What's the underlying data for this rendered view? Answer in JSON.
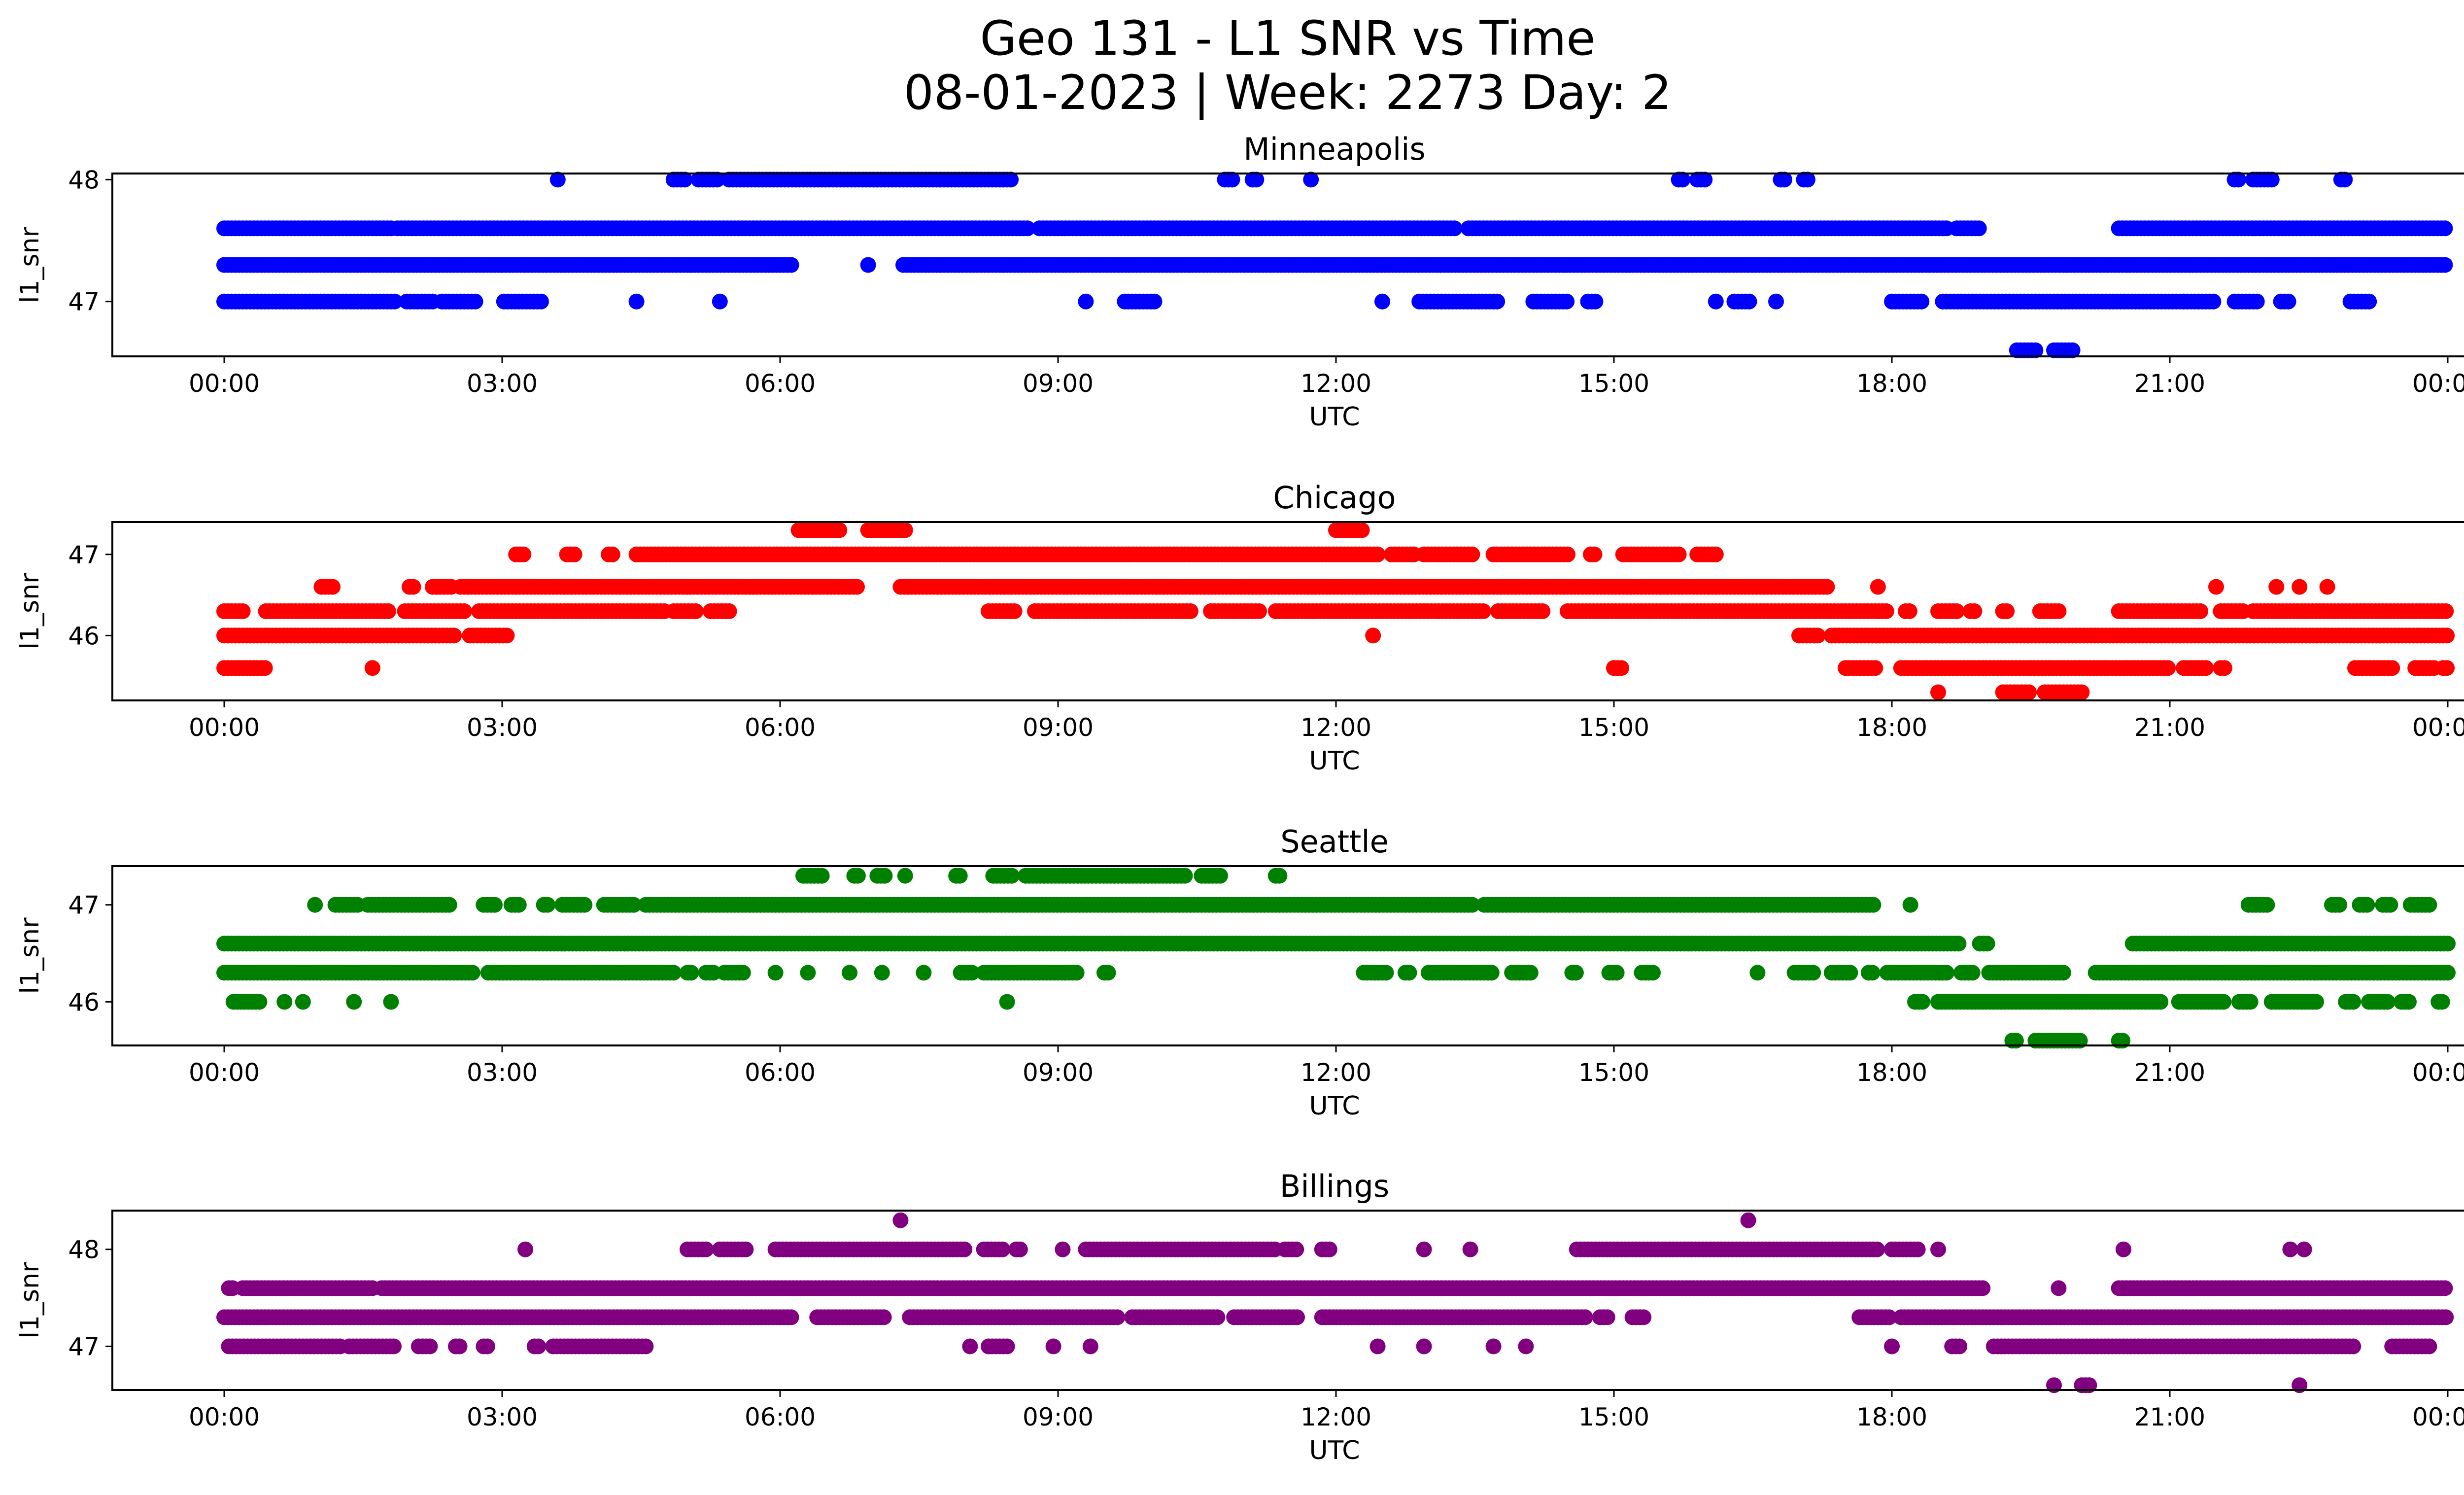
{
  "figure": {
    "title_line1": "Geo 131 - L1 SNR vs Time",
    "title_line2": "08-01-2023 | Week: 2273 Day: 2"
  },
  "chart_data": [
    {
      "type": "scatter",
      "title": "Minneapolis",
      "xlabel": "UTC",
      "ylabel": "l1_snr",
      "color": "#0000ff",
      "xlim": [
        "23:35",
        "24:25"
      ],
      "ylim": [
        46.55,
        48.05
      ],
      "x_ticks": [
        "00:00",
        "03:00",
        "06:00",
        "09:00",
        "12:00",
        "15:00",
        "18:00",
        "21:00",
        "00:00"
      ],
      "y_ticks": [
        47,
        48
      ],
      "bands": [
        {
          "y": 47.6,
          "ranges": [
            [
              0.0,
              1.8
            ],
            [
              1.87,
              8.7
            ],
            [
              8.8,
              13.3
            ],
            [
              13.43,
              18.6
            ],
            [
              18.7,
              18.97
            ],
            [
              20.45,
              24.0
            ]
          ]
        },
        {
          "y": 47.3,
          "ranges": [
            [
              0.0,
              6.15
            ],
            [
              7.33,
              24.0
            ]
          ]
        },
        {
          "y": 47.0,
          "ranges": [
            [
              0.0,
              1.85
            ],
            [
              1.97,
              2.25
            ],
            [
              2.35,
              2.72
            ],
            [
              3.02,
              3.45
            ],
            [
              9.3,
              9.3
            ],
            [
              9.72,
              10.05
            ],
            [
              12.5,
              12.5
            ],
            [
              12.9,
              13.75
            ],
            [
              14.13,
              14.5
            ],
            [
              14.72,
              14.8
            ],
            [
              16.1,
              16.1
            ],
            [
              16.3,
              16.48
            ],
            [
              16.75,
              16.75
            ],
            [
              18.0,
              18.35
            ],
            [
              18.55,
              21.5
            ],
            [
              21.7,
              21.95
            ],
            [
              22.2,
              22.3
            ],
            [
              22.95,
              23.15
            ]
          ]
        },
        {
          "y": 48.0,
          "ranges": [
            [
              4.85,
              5.0
            ],
            [
              5.12,
              5.35
            ],
            [
              5.45,
              8.5
            ],
            [
              10.8,
              10.9
            ],
            [
              11.1,
              11.15
            ],
            [
              11.73,
              11.73
            ],
            [
              15.7,
              15.75
            ],
            [
              15.9,
              16.0
            ],
            [
              16.8,
              16.85
            ],
            [
              17.05,
              17.1
            ],
            [
              21.7,
              21.75
            ],
            [
              21.9,
              22.1
            ],
            [
              22.85,
              22.9
            ]
          ]
        },
        {
          "y": 46.6,
          "ranges": [
            [
              19.35,
              19.55
            ],
            [
              19.75,
              19.95
            ]
          ]
        }
      ],
      "points": [
        [
          3.6,
          48.0
        ],
        [
          6.95,
          47.3
        ],
        [
          4.45,
          47.0
        ],
        [
          5.35,
          47.0
        ],
        [
          21.15,
          47.0
        ]
      ]
    },
    {
      "type": "scatter",
      "title": "Chicago",
      "xlabel": "UTC",
      "ylabel": "l1_snr",
      "color": "#ff0000",
      "xlim": [
        "23:35",
        "24:25"
      ],
      "ylim": [
        45.2,
        47.4
      ],
      "x_ticks": [
        "00:00",
        "03:00",
        "06:00",
        "09:00",
        "12:00",
        "15:00",
        "18:00",
        "21:00",
        "00:00"
      ],
      "y_ticks": [
        46,
        47
      ],
      "bands": [
        {
          "y": 47.0,
          "ranges": [
            [
              3.15,
              3.25
            ],
            [
              3.7,
              3.8
            ],
            [
              4.15,
              4.2
            ],
            [
              4.45,
              12.45
            ],
            [
              12.6,
              12.85
            ],
            [
              12.95,
              13.5
            ],
            [
              13.7,
              14.5
            ],
            [
              14.75,
              14.8
            ],
            [
              15.1,
              15.7
            ],
            [
              15.9,
              16.1
            ]
          ]
        },
        {
          "y": 46.6,
          "ranges": [
            [
              1.05,
              1.2
            ],
            [
              2.0,
              2.05
            ],
            [
              2.25,
              2.45
            ],
            [
              2.55,
              6.85
            ],
            [
              7.3,
              17.3
            ]
          ]
        },
        {
          "y": 46.3,
          "ranges": [
            [
              0.0,
              0.2
            ],
            [
              0.45,
              1.8
            ],
            [
              1.95,
              2.6
            ],
            [
              2.75,
              4.75
            ],
            [
              4.85,
              5.1
            ],
            [
              5.25,
              5.45
            ],
            [
              8.25,
              8.55
            ],
            [
              8.75,
              10.45
            ],
            [
              10.65,
              11.2
            ],
            [
              11.35,
              13.6
            ],
            [
              13.75,
              14.25
            ],
            [
              14.5,
              17.95
            ],
            [
              18.15,
              18.2
            ],
            [
              18.5,
              18.7
            ],
            [
              18.85,
              18.9
            ],
            [
              19.2,
              19.25
            ],
            [
              19.6,
              19.8
            ],
            [
              20.45,
              21.35
            ],
            [
              21.55,
              21.8
            ],
            [
              21.9,
              24.0
            ]
          ]
        },
        {
          "y": 46.0,
          "ranges": [
            [
              0.0,
              2.5
            ],
            [
              2.65,
              3.05
            ],
            [
              17.0,
              17.2
            ],
            [
              17.35,
              24.0
            ]
          ]
        },
        {
          "y": 45.6,
          "ranges": [
            [
              0.0,
              0.45
            ],
            [
              15.0,
              15.1
            ],
            [
              17.5,
              17.85
            ],
            [
              18.1,
              21.0
            ],
            [
              21.15,
              21.4
            ],
            [
              21.55,
              21.6
            ],
            [
              23.0,
              23.4
            ],
            [
              23.65,
              23.85
            ],
            [
              23.95,
              24.0
            ]
          ]
        },
        {
          "y": 47.3,
          "ranges": [
            [
              6.2,
              6.65
            ],
            [
              6.95,
              7.35
            ],
            [
              12.0,
              12.3
            ]
          ]
        },
        {
          "y": 45.3,
          "ranges": [
            [
              18.5,
              18.5
            ],
            [
              19.2,
              19.5
            ],
            [
              19.65,
              20.05
            ]
          ]
        }
      ],
      "points": [
        [
          12.4,
          46.0
        ],
        [
          1.6,
          45.6
        ],
        [
          17.85,
          46.6
        ],
        [
          21.5,
          46.6
        ],
        [
          22.15,
          46.6
        ],
        [
          22.4,
          46.6
        ],
        [
          22.7,
          46.6
        ]
      ]
    },
    {
      "type": "scatter",
      "title": "Seattle",
      "xlabel": "UTC",
      "ylabel": "l1_snr",
      "color": "#008000",
      "xlim": [
        "23:35",
        "24:25"
      ],
      "ylim": [
        45.55,
        47.4
      ],
      "x_ticks": [
        "00:00",
        "03:00",
        "06:00",
        "09:00",
        "12:00",
        "15:00",
        "18:00",
        "21:00",
        "00:00"
      ],
      "y_ticks": [
        46,
        47
      ],
      "bands": [
        {
          "y": 47.0,
          "ranges": [
            [
              0.98,
              0.98
            ],
            [
              1.2,
              1.45
            ],
            [
              1.55,
              2.45
            ],
            [
              2.8,
              2.95
            ],
            [
              3.1,
              3.2
            ],
            [
              3.45,
              3.5
            ],
            [
              3.65,
              3.9
            ],
            [
              4.1,
              4.45
            ],
            [
              4.55,
              13.5
            ],
            [
              13.6,
              17.8
            ],
            [
              18.2,
              18.2
            ],
            [
              21.85,
              22.05
            ],
            [
              22.75,
              22.85
            ],
            [
              23.05,
              23.15
            ],
            [
              23.3,
              23.4
            ],
            [
              23.6,
              23.8
            ]
          ]
        },
        {
          "y": 46.6,
          "ranges": [
            [
              0.0,
              18.75
            ],
            [
              18.95,
              19.05
            ],
            [
              20.6,
              24.0
            ]
          ]
        },
        {
          "y": 46.3,
          "ranges": [
            [
              0.0,
              2.7
            ],
            [
              2.85,
              4.85
            ],
            [
              5.0,
              5.05
            ],
            [
              5.2,
              5.3
            ],
            [
              5.4,
              5.6
            ],
            [
              5.95,
              5.95
            ],
            [
              6.3,
              6.3
            ],
            [
              6.75,
              6.75
            ],
            [
              7.1,
              7.1
            ],
            [
              7.55,
              7.55
            ],
            [
              7.95,
              8.1
            ],
            [
              8.2,
              9.2
            ],
            [
              9.5,
              9.55
            ],
            [
              12.3,
              12.55
            ],
            [
              12.75,
              12.8
            ],
            [
              13.0,
              13.7
            ],
            [
              13.9,
              14.1
            ],
            [
              14.55,
              14.6
            ],
            [
              14.95,
              15.05
            ],
            [
              15.3,
              15.45
            ],
            [
              16.55,
              16.55
            ],
            [
              16.95,
              17.15
            ],
            [
              17.35,
              17.55
            ],
            [
              17.75,
              17.8
            ],
            [
              17.95,
              18.6
            ],
            [
              18.75,
              18.9
            ],
            [
              19.05,
              19.85
            ],
            [
              20.2,
              24.0
            ]
          ]
        },
        {
          "y": 46.0,
          "ranges": [
            [
              0.1,
              0.4
            ],
            [
              0.65,
              0.65
            ],
            [
              0.85,
              0.85
            ],
            [
              1.4,
              1.4
            ],
            [
              1.8,
              1.8
            ],
            [
              18.25,
              18.35
            ],
            [
              18.5,
              20.9
            ],
            [
              21.1,
              21.6
            ],
            [
              21.75,
              21.9
            ],
            [
              22.1,
              22.6
            ],
            [
              22.9,
              23.0
            ],
            [
              23.15,
              23.35
            ],
            [
              23.5,
              23.6
            ],
            [
              23.9,
              23.95
            ]
          ]
        },
        {
          "y": 47.3,
          "ranges": [
            [
              6.25,
              6.45
            ],
            [
              6.8,
              6.85
            ],
            [
              7.05,
              7.15
            ],
            [
              7.35,
              7.35
            ],
            [
              7.9,
              7.95
            ],
            [
              8.3,
              8.5
            ],
            [
              8.65,
              10.4
            ],
            [
              10.55,
              10.75
            ],
            [
              11.35,
              11.4
            ]
          ]
        },
        {
          "y": 45.6,
          "ranges": [
            [
              19.3,
              19.35
            ],
            [
              19.55,
              20.05
            ],
            [
              20.45,
              20.5
            ]
          ]
        }
      ],
      "points": [
        [
          8.45,
          46.0
        ]
      ]
    },
    {
      "type": "scatter",
      "title": "Billings",
      "xlabel": "UTC",
      "ylabel": "l1_snr",
      "color": "#800080",
      "xlim": [
        "23:35",
        "24:25"
      ],
      "ylim": [
        46.55,
        48.4
      ],
      "x_ticks": [
        "00:00",
        "03:00",
        "06:00",
        "09:00",
        "12:00",
        "15:00",
        "18:00",
        "21:00",
        "00:00"
      ],
      "y_ticks": [
        47,
        48
      ],
      "bands": [
        {
          "y": 48.0,
          "ranges": [
            [
              5.0,
              5.2
            ],
            [
              5.35,
              5.65
            ],
            [
              5.95,
              8.0
            ],
            [
              8.2,
              8.4
            ],
            [
              8.55,
              8.6
            ],
            [
              9.05,
              9.05
            ],
            [
              9.3,
              11.35
            ],
            [
              11.45,
              11.6
            ],
            [
              11.85,
              11.95
            ],
            [
              12.95,
              12.95
            ],
            [
              13.45,
              13.45
            ],
            [
              14.6,
              17.85
            ],
            [
              18.0,
              18.3
            ],
            [
              18.5,
              18.5
            ]
          ]
        },
        {
          "y": 47.6,
          "ranges": [
            [
              0.05,
              0.1
            ],
            [
              0.2,
              1.6
            ],
            [
              1.7,
              19.0
            ],
            [
              19.8,
              19.8
            ],
            [
              20.45,
              24.0
            ]
          ]
        },
        {
          "y": 47.3,
          "ranges": [
            [
              0.0,
              6.15
            ],
            [
              6.4,
              7.15
            ],
            [
              7.4,
              9.65
            ],
            [
              9.8,
              10.75
            ],
            [
              10.9,
              11.6
            ],
            [
              11.85,
              14.7
            ],
            [
              14.85,
              14.95
            ],
            [
              15.2,
              15.35
            ],
            [
              17.65,
              18.0
            ],
            [
              18.1,
              24.0
            ]
          ]
        },
        {
          "y": 47.0,
          "ranges": [
            [
              0.05,
              1.25
            ],
            [
              1.35,
              1.85
            ],
            [
              2.1,
              2.25
            ],
            [
              2.5,
              2.55
            ],
            [
              2.8,
              2.85
            ],
            [
              3.35,
              3.4
            ],
            [
              3.55,
              4.55
            ],
            [
              8.05,
              8.05
            ],
            [
              8.25,
              8.45
            ],
            [
              8.95,
              8.95
            ],
            [
              9.35,
              9.35
            ],
            [
              12.45,
              12.45
            ],
            [
              12.95,
              12.95
            ],
            [
              13.7,
              13.7
            ],
            [
              14.05,
              14.05
            ],
            [
              18.0,
              18.0
            ],
            [
              18.65,
              18.75
            ],
            [
              19.1,
              23.0
            ],
            [
              23.4,
              23.8
            ]
          ]
        },
        {
          "y": 46.6,
          "ranges": [
            [
              19.75,
              19.75
            ],
            [
              20.05,
              20.15
            ]
          ]
        }
      ],
      "points": [
        [
          7.3,
          48.3
        ],
        [
          16.45,
          48.3
        ],
        [
          3.25,
          48.0
        ],
        [
          20.5,
          48.0
        ],
        [
          22.3,
          48.0
        ],
        [
          22.45,
          48.0
        ],
        [
          22.4,
          46.6
        ]
      ]
    }
  ]
}
